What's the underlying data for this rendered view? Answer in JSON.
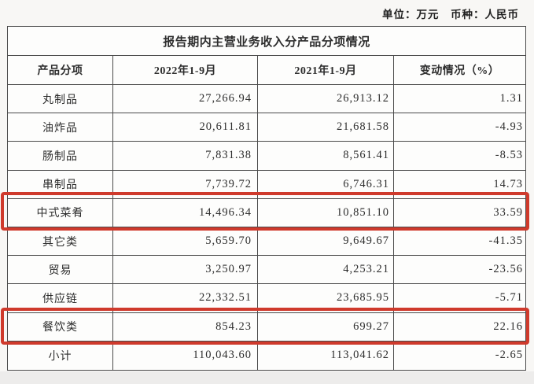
{
  "page": {
    "unit_note": "单位：万元　币种：人民币"
  },
  "table": {
    "title": "报告期内主营业务收入分产品分项情况",
    "columns": [
      "产品分项",
      "2022年1-9月",
      "2021年1-9月",
      "变动情况（%）"
    ],
    "rows": [
      {
        "name": "丸制品",
        "v2022": "27,266.94",
        "v2021": "26,913.12",
        "change": "1.31",
        "highlighted": false
      },
      {
        "name": "油炸品",
        "v2022": "20,611.81",
        "v2021": "21,681.58",
        "change": "-4.93",
        "highlighted": false
      },
      {
        "name": "肠制品",
        "v2022": "7,831.38",
        "v2021": "8,561.41",
        "change": "-8.53",
        "highlighted": false
      },
      {
        "name": "串制品",
        "v2022": "7,739.72",
        "v2021": "6,746.31",
        "change": "14.73",
        "highlighted": false
      },
      {
        "name": "中式菜肴",
        "v2022": "14,496.34",
        "v2021": "10,851.10",
        "change": "33.59",
        "highlighted": true
      },
      {
        "name": "其它类",
        "v2022": "5,659.70",
        "v2021": "9,649.67",
        "change": "-41.35",
        "highlighted": false
      },
      {
        "name": "贸易",
        "v2022": "3,250.97",
        "v2021": "4,253.21",
        "change": "-23.56",
        "highlighted": false
      },
      {
        "name": "供应链",
        "v2022": "22,332.51",
        "v2021": "23,685.95",
        "change": "-5.71",
        "highlighted": false
      },
      {
        "name": "餐饮类",
        "v2022": "854.23",
        "v2021": "699.27",
        "change": "22.16",
        "highlighted": true
      },
      {
        "name": "小计",
        "v2022": "110,043.60",
        "v2021": "113,041.62",
        "change": "-2.65",
        "highlighted": false
      }
    ],
    "highlight_color": "#cf3a2c"
  }
}
